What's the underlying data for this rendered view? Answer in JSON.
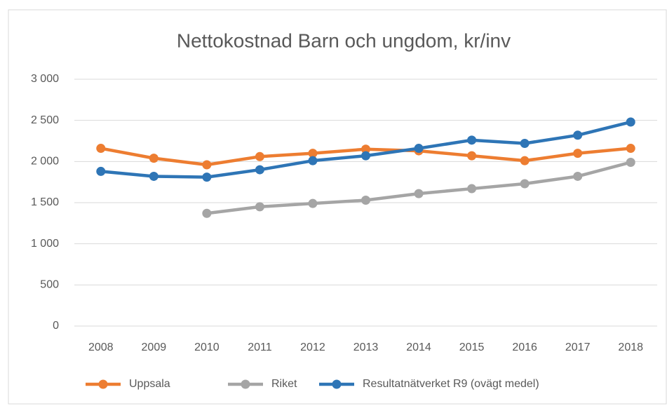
{
  "chart_data": {
    "type": "line",
    "title": "Nettokostnad Barn och ungdom, kr/inv",
    "categories": [
      "2008",
      "2009",
      "2010",
      "2011",
      "2012",
      "2013",
      "2014",
      "2015",
      "2016",
      "2017",
      "2018"
    ],
    "series": [
      {
        "name": "Uppsala",
        "color": "#ed7d31",
        "values": [
          2160,
          2040,
          1960,
          2060,
          2100,
          2150,
          2130,
          2070,
          2010,
          2100,
          2160
        ]
      },
      {
        "name": "Riket",
        "color": "#a5a5a5",
        "values": [
          null,
          null,
          1370,
          1450,
          1490,
          1530,
          1610,
          1670,
          1730,
          1820,
          1990
        ]
      },
      {
        "name": "Resultatnätverket R9 (ovägt medel)",
        "color": "#2e75b6",
        "values": [
          1880,
          1820,
          1810,
          1900,
          2010,
          2070,
          2160,
          2260,
          2220,
          2320,
          2480
        ]
      }
    ],
    "ylim": [
      0,
      3000
    ],
    "yticks": [
      0,
      500,
      {
        "value": 1000,
        "label": "1 000"
      },
      {
        "value": 1500,
        "label": "1 500"
      },
      {
        "value": 2000,
        "label": "2 000"
      },
      {
        "value": 2500,
        "label": "2 500"
      },
      {
        "value": 3000,
        "label": "3 000"
      }
    ],
    "grid": true,
    "legend": "bottom"
  }
}
